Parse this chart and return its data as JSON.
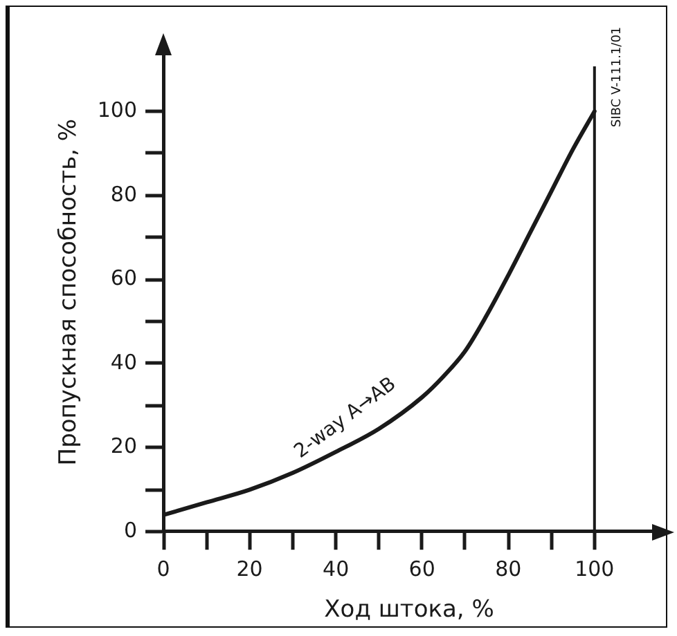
{
  "chart_data": {
    "type": "line",
    "xlabel": "Ход штока, %",
    "ylabel": "Пропускная способность, %",
    "x": [
      0,
      10,
      20,
      30,
      40,
      50,
      60,
      65,
      70,
      75,
      80,
      85,
      90,
      95,
      100
    ],
    "series": [
      {
        "name": "2-way A→AB",
        "color": "#1a1a1a",
        "values": [
          4,
          7,
          10,
          14,
          19,
          24.5,
          32,
          37,
          43,
          51.5,
          61,
          71,
          81,
          91,
          100
        ]
      }
    ],
    "xlim": [
      0,
      114
    ],
    "ylim": [
      0,
      114
    ],
    "xticks": [
      0,
      {
        "value": 10,
        "label": null
      },
      20,
      {
        "value": 30,
        "label": null
      },
      40,
      {
        "value": 50,
        "label": null
      },
      60,
      {
        "value": 70,
        "label": null
      },
      80,
      {
        "value": 90,
        "label": null
      },
      100
    ],
    "yticks": [
      0,
      {
        "value": 10,
        "label": null
      },
      20,
      {
        "value": 30,
        "label": null
      },
      40,
      {
        "value": 50,
        "label": null
      },
      60,
      {
        "value": 70,
        "label": null
      },
      80,
      {
        "value": 90,
        "label": null
      },
      100
    ],
    "ref_lines": [
      {
        "axis": "x",
        "value": 100,
        "color": "#1a1a1a"
      }
    ],
    "annotations": [
      "SIBC V-111.1/01"
    ],
    "grid": false,
    "legend": false,
    "marker": "none",
    "line_style": "solid"
  }
}
